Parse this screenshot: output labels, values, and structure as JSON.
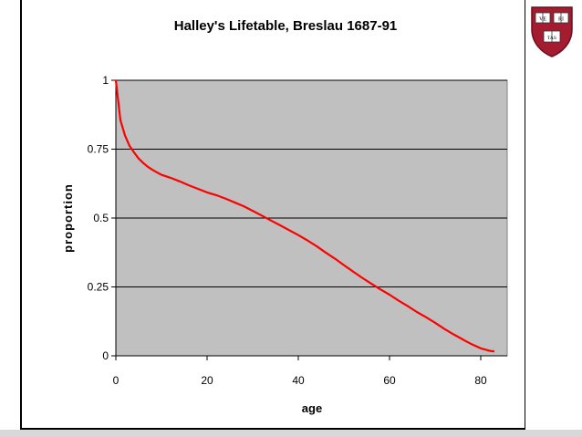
{
  "shield": {
    "books": [
      "VE",
      "RI",
      "TAS"
    ]
  },
  "chart_data": {
    "type": "line",
    "title": "Halley's Lifetable, Breslau 1687-91",
    "xlabel": "age",
    "ylabel": "proportion",
    "xlim": [
      0,
      84
    ],
    "ylim": [
      0,
      1
    ],
    "xticks": [
      "0",
      "20",
      "40",
      "60",
      "80"
    ],
    "yticks": [
      "0",
      "0.25",
      "0.5",
      "0.75",
      "1"
    ],
    "grid": "horizontal",
    "legend": "none",
    "background": "#c0c0c0",
    "line_color": "#ff0000",
    "series": [
      {
        "x": [
          0,
          1,
          2,
          3,
          4,
          5,
          6,
          7,
          8,
          9,
          10,
          12,
          14,
          16,
          18,
          20,
          22,
          24,
          26,
          28,
          30,
          32,
          34,
          36,
          38,
          40,
          42,
          44,
          46,
          48,
          50,
          52,
          54,
          56,
          58,
          60,
          62,
          64,
          66,
          68,
          70,
          72,
          74,
          76,
          78,
          80,
          82,
          83
        ],
        "values": [
          1.0,
          0.855,
          0.8,
          0.762,
          0.738,
          0.716,
          0.7,
          0.686,
          0.675,
          0.666,
          0.657,
          0.646,
          0.633,
          0.619,
          0.606,
          0.593,
          0.583,
          0.571,
          0.557,
          0.543,
          0.526,
          0.509,
          0.491,
          0.474,
          0.456,
          0.438,
          0.419,
          0.398,
          0.375,
          0.353,
          0.329,
          0.306,
          0.283,
          0.262,
          0.241,
          0.222,
          0.2,
          0.18,
          0.159,
          0.14,
          0.12,
          0.098,
          0.078,
          0.06,
          0.042,
          0.027,
          0.018,
          0.016
        ]
      }
    ]
  }
}
